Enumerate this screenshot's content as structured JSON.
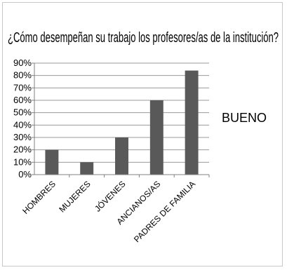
{
  "chart_data": {
    "type": "bar",
    "title": "¿Cómo desempeñan su trabajo los profesores/as de la institución?",
    "categories": [
      "HOMBRES",
      "MUJERES",
      "JÓVENES",
      "ANCIANOS/AS",
      "PADRES DE FAMILIA"
    ],
    "series": [
      {
        "name": "BUENO",
        "values": [
          20,
          10,
          30,
          60,
          84
        ]
      }
    ],
    "y_tick_labels": [
      "0%",
      "10%",
      "20%",
      "30%",
      "40%",
      "50%",
      "60%",
      "70%",
      "80%",
      "90%"
    ],
    "ylim": [
      0,
      90
    ],
    "grid": true,
    "legend_position": "right",
    "colors": {
      "bar": "#595959",
      "grid": "#9a9a9a",
      "axis": "#808080",
      "border": "#c8c8c8"
    }
  }
}
